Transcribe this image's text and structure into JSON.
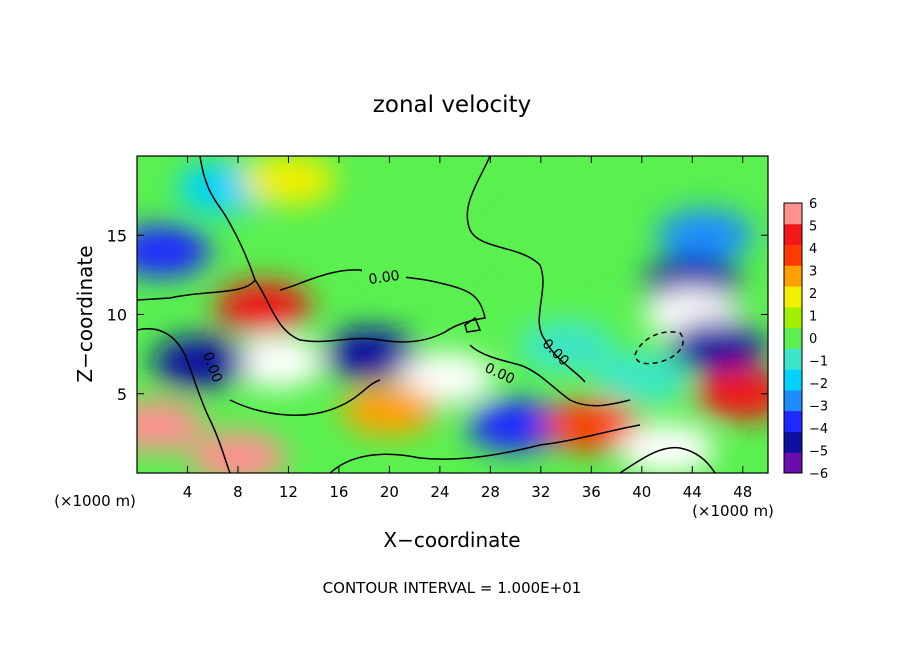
{
  "chart_data": {
    "type": "heatmap",
    "title": "zonal velocity",
    "xlabel": "X−coordinate",
    "ylabel": "Z−coordinate",
    "x_scale_note": "(×1000 m)",
    "y_scale_note": "(×1000 m)",
    "footer": "CONTOUR INTERVAL = 1.000E+01",
    "xlim": [
      0,
      50
    ],
    "ylim": [
      0,
      20
    ],
    "x_ticks": [
      "4",
      "8",
      "12",
      "16",
      "20",
      "24",
      "28",
      "32",
      "36",
      "40",
      "44",
      "48"
    ],
    "y_ticks": [
      "5",
      "10",
      "15"
    ],
    "colorbar": {
      "min": -6,
      "max": 6,
      "tick_labels": [
        "6",
        "5",
        "4",
        "3",
        "2",
        "1",
        "0",
        "−1",
        "−2",
        "−3",
        "−4",
        "−5",
        "−6"
      ],
      "colors": [
        "#6a0dad",
        "#1010a0",
        "#1e28ff",
        "#1e8cff",
        "#00d2ff",
        "#3ce6c8",
        "#5af050",
        "#a0f000",
        "#f0f000",
        "#ffa000",
        "#ff3c00",
        "#f01818",
        "#ff9090"
      ]
    },
    "contour_labels": [
      "0.00",
      "0.00",
      "0.00",
      "0.00"
    ],
    "regions": [
      {
        "x": 7,
        "z": 18,
        "value": -2.5
      },
      {
        "x": 2,
        "z": 14,
        "value": -4.5
      },
      {
        "x": 12,
        "z": 18.5,
        "value": 1.8
      },
      {
        "x": 22,
        "z": 14,
        "value": 0.2
      },
      {
        "x": 33,
        "z": 15,
        "value": 0.3
      },
      {
        "x": 45,
        "z": 15,
        "value": -3.5
      },
      {
        "x": 44,
        "z": 12,
        "value": -5.5
      },
      {
        "x": 44,
        "z": 10,
        "value": 6.5
      },
      {
        "x": 46,
        "z": 8,
        "value": -5.5
      },
      {
        "x": 10,
        "z": 10.5,
        "value": 4.5
      },
      {
        "x": 11,
        "z": 7,
        "value": 6.5
      },
      {
        "x": 5,
        "z": 7,
        "value": -5
      },
      {
        "x": 18.5,
        "z": 7.5,
        "value": -5.5
      },
      {
        "x": 24.5,
        "z": 6,
        "value": 6.5
      },
      {
        "x": 20,
        "z": 4,
        "value": 3
      },
      {
        "x": 1.5,
        "z": 3,
        "value": 5.5
      },
      {
        "x": 8,
        "z": 1,
        "value": 6
      },
      {
        "x": 30,
        "z": 3,
        "value": -4
      },
      {
        "x": 36,
        "z": 3,
        "value": 3.5
      },
      {
        "x": 42,
        "z": 1.5,
        "value": 6.5
      },
      {
        "x": 48,
        "z": 5,
        "value": 5
      },
      {
        "x": 34,
        "z": 8,
        "value": -0.8
      },
      {
        "x": 40,
        "z": 6,
        "value": -1.5
      }
    ]
  }
}
